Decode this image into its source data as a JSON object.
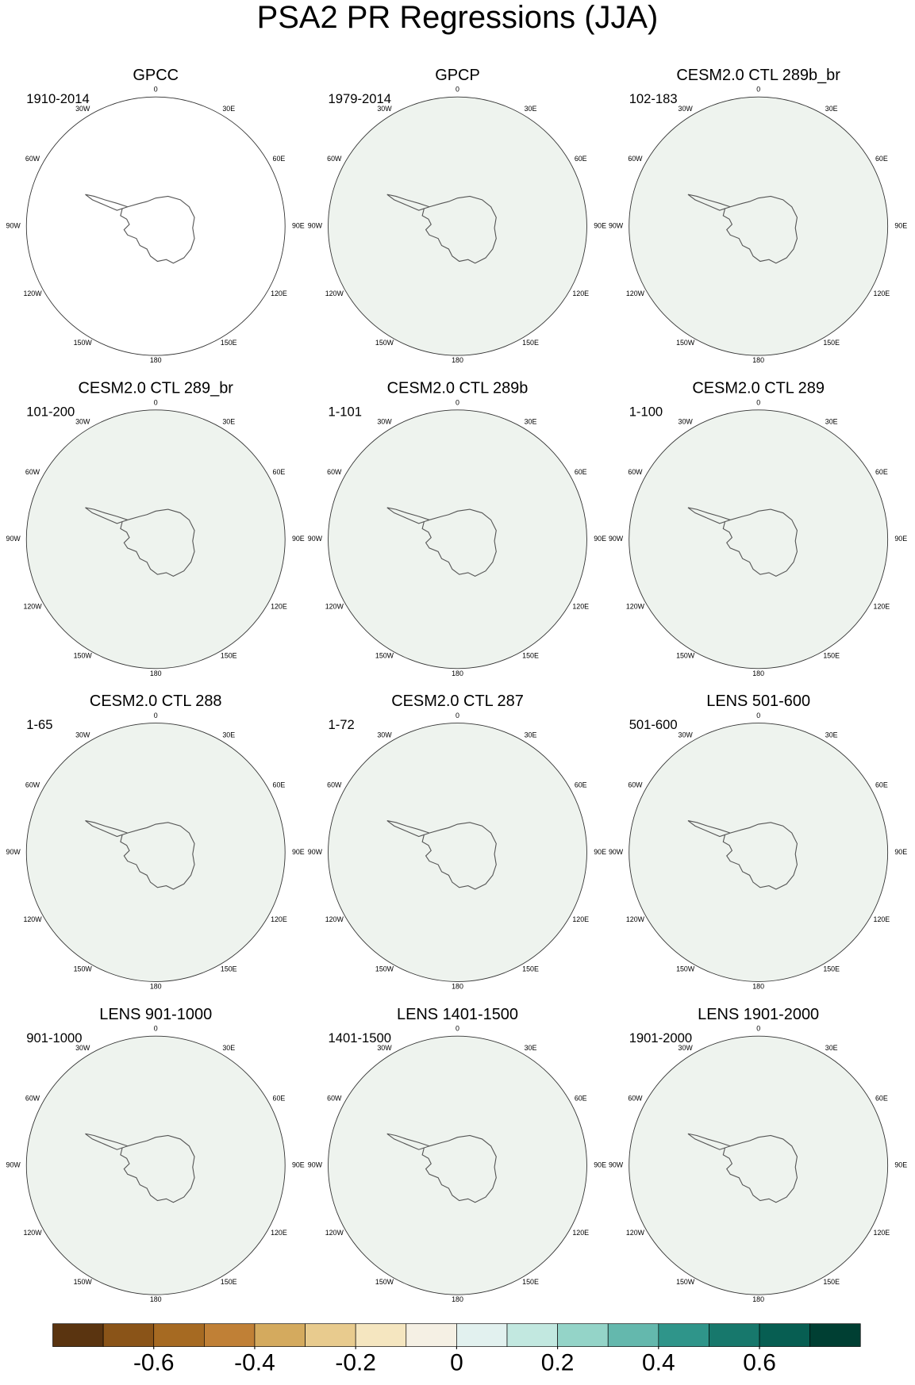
{
  "title": "PSA2 PR Regressions (JJA)",
  "panels": [
    {
      "title": "GPCC",
      "period": "1910-2014"
    },
    {
      "title": "GPCP",
      "period": "1979-2014"
    },
    {
      "title": "CESM2.0 CTL 289b_br",
      "period": "102-183"
    },
    {
      "title": "CESM2.0 CTL 289_br",
      "period": "101-200"
    },
    {
      "title": "CESM2.0 CTL 289b",
      "period": "1-101"
    },
    {
      "title": "CESM2.0 CTL 289",
      "period": "1-100"
    },
    {
      "title": "CESM2.0 CTL 288",
      "period": "1-65"
    },
    {
      "title": "CESM2.0 CTL 287",
      "period": "1-72"
    },
    {
      "title": "LENS 501-600",
      "period": "501-600"
    },
    {
      "title": "LENS 901-1000",
      "period": "901-1000"
    },
    {
      "title": "LENS 1401-1500",
      "period": "1401-1500"
    },
    {
      "title": "LENS 1901-2000",
      "period": "1901-2000"
    }
  ],
  "longitude_labels": [
    "0",
    "30E",
    "60E",
    "90E",
    "120E",
    "150E",
    "180",
    "150W",
    "120W",
    "90W",
    "60W",
    "30W"
  ],
  "colorbar": {
    "levels": [
      -0.8,
      -0.7,
      -0.6,
      -0.5,
      -0.4,
      -0.3,
      -0.2,
      -0.1,
      0,
      0.1,
      0.2,
      0.3,
      0.4,
      0.5,
      0.6,
      0.7,
      0.8
    ],
    "colors": [
      "#5a3410",
      "#8a5418",
      "#a66a22",
      "#c08036",
      "#d4aa5e",
      "#e8cb8e",
      "#f5e6c0",
      "#f5f0e4",
      "#e2f1ef",
      "#c2e8e0",
      "#94d4c8",
      "#64b8ad",
      "#2f958a",
      "#17786c",
      "#075e52",
      "#003f33"
    ],
    "ticks": [
      -0.6,
      -0.4,
      -0.2,
      0,
      0.2,
      0.4,
      0.6
    ]
  }
}
